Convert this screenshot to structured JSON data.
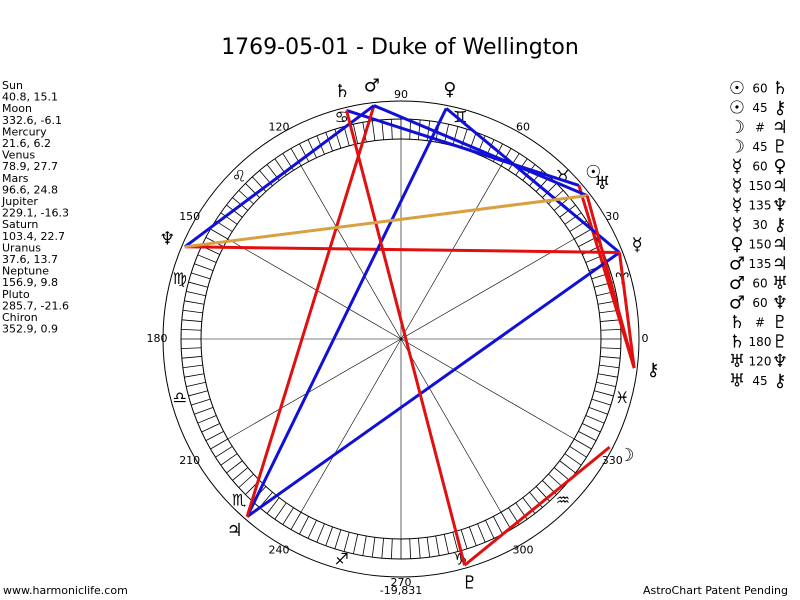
{
  "header": {
    "title": "1769-05-01 - Duke of Wellington"
  },
  "planets": [
    {
      "name": "Sun",
      "position": "40.8, 15.1",
      "glyph": "☉"
    },
    {
      "name": "Moon",
      "position": "332.6, -6.1",
      "glyph": "☽"
    },
    {
      "name": "Mercury",
      "position": "21.6, 6.2",
      "glyph": "☿"
    },
    {
      "name": "Venus",
      "position": "78.9, 27.7",
      "glyph": "♀"
    },
    {
      "name": "Mars",
      "position": "96.6, 24.8",
      "glyph": "♂"
    },
    {
      "name": "Jupiter",
      "position": "229.1, -16.3",
      "glyph": "♃"
    },
    {
      "name": "Saturn",
      "position": "103.4, 22.7",
      "glyph": "♄"
    },
    {
      "name": "Uranus",
      "position": "37.6, 13.7",
      "glyph": "♅"
    },
    {
      "name": "Neptune",
      "position": "156.9, 9.8",
      "glyph": "♆"
    },
    {
      "name": "Pluto",
      "position": "285.7, -21.6",
      "glyph": "♇"
    },
    {
      "name": "Chiron",
      "position": "352.9, 0.9",
      "glyph": "⚷"
    }
  ],
  "wheel": {
    "degree_ticks": [
      0,
      30,
      60,
      90,
      120,
      150,
      180,
      210,
      240,
      270,
      300,
      330
    ],
    "signs": [
      "♈",
      "♉",
      "♊",
      "♋",
      "♌",
      "♍",
      "♎",
      "♏",
      "♐",
      "♑",
      "♒",
      "♓"
    ]
  },
  "aspects": [
    {
      "from": "Sun",
      "aspect": "60",
      "to": "Saturn",
      "color": "#1010d8"
    },
    {
      "from": "Sun",
      "aspect": "45",
      "to": "Chiron",
      "color": "#e01010"
    },
    {
      "from": "Moon",
      "aspect": "#",
      "to": "Jupiter"
    },
    {
      "from": "Moon",
      "aspect": "45",
      "to": "Pluto",
      "color": "#e01010"
    },
    {
      "from": "Mercury",
      "aspect": "60",
      "to": "Venus",
      "color": "#1010d8"
    },
    {
      "from": "Mercury",
      "aspect": "150",
      "to": "Jupiter",
      "color": "#1010d8"
    },
    {
      "from": "Mercury",
      "aspect": "135",
      "to": "Neptune",
      "color": "#e01010"
    },
    {
      "from": "Mercury",
      "aspect": "30",
      "to": "Chiron",
      "color": "#e01010"
    },
    {
      "from": "Venus",
      "aspect": "150",
      "to": "Jupiter",
      "color": "#1010d8"
    },
    {
      "from": "Mars",
      "aspect": "135",
      "to": "Jupiter",
      "color": "#e01010"
    },
    {
      "from": "Mars",
      "aspect": "60",
      "to": "Uranus",
      "color": "#1010d8"
    },
    {
      "from": "Mars",
      "aspect": "60",
      "to": "Neptune",
      "color": "#1010d8"
    },
    {
      "from": "Saturn",
      "aspect": "#",
      "to": "Pluto"
    },
    {
      "from": "Saturn",
      "aspect": "180",
      "to": "Pluto",
      "color": "#e01010"
    },
    {
      "from": "Uranus",
      "aspect": "120",
      "to": "Neptune",
      "color": "#d8a040"
    },
    {
      "from": "Uranus",
      "aspect": "45",
      "to": "Chiron",
      "color": "#e01010"
    }
  ],
  "footer": {
    "website": "www.harmoniclife.com",
    "number": "-19,831",
    "notice": "AstroChart Patent Pending"
  }
}
